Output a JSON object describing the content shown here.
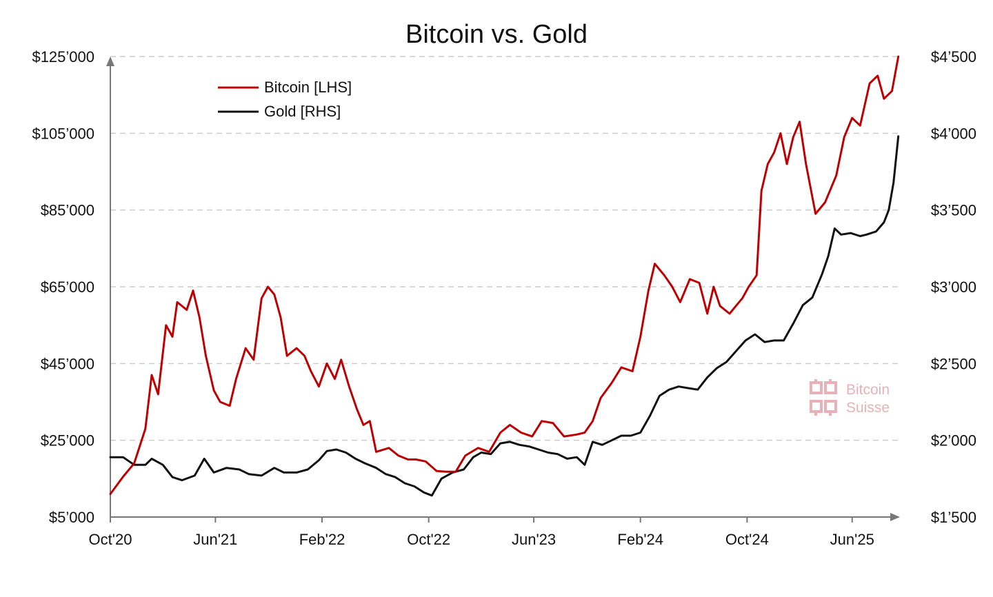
{
  "chart_data": {
    "type": "line",
    "title": "Bitcoin vs. Gold",
    "x_tick_labels": [
      "Oct'20",
      "Jun'21",
      "Feb'22",
      "Oct'22",
      "Jun'23",
      "Feb'24",
      "Oct'24",
      "Jun'25"
    ],
    "x_range": [
      2020.77,
      2025.73
    ],
    "x_tick_positions": [
      2020.77,
      2021.43,
      2022.1,
      2022.77,
      2023.43,
      2024.1,
      2024.77,
      2025.43
    ],
    "y_left": {
      "range": [
        5000,
        125000
      ],
      "ticks": [
        5000,
        25000,
        45000,
        65000,
        85000,
        105000,
        125000
      ],
      "tick_labels": [
        "$5’000",
        "$25’000",
        "$45’000",
        "$65’000",
        "$85’000",
        "$105’000",
        "$125’000"
      ]
    },
    "y_right": {
      "range": [
        1500,
        4500
      ],
      "ticks": [
        1500,
        2000,
        2500,
        3000,
        3500,
        4000,
        4500
      ],
      "tick_labels": [
        "$1’500",
        "$2’000",
        "$2’500",
        "$3’000",
        "$3’500",
        "$4’000",
        "$4’500"
      ]
    },
    "grid": "horizontal dashed",
    "legend": {
      "placement": "top-left"
    },
    "series": [
      {
        "name": "Bitcoin [LHS]",
        "axis": "left",
        "color": "#c00000",
        "points": [
          [
            2020.77,
            11000
          ],
          [
            2020.85,
            15500
          ],
          [
            2020.92,
            19000
          ],
          [
            2020.99,
            28000
          ],
          [
            2021.03,
            42000
          ],
          [
            2021.07,
            37000
          ],
          [
            2021.12,
            55000
          ],
          [
            2021.16,
            52000
          ],
          [
            2021.19,
            61000
          ],
          [
            2021.25,
            59000
          ],
          [
            2021.29,
            64000
          ],
          [
            2021.33,
            57000
          ],
          [
            2021.37,
            47000
          ],
          [
            2021.42,
            38000
          ],
          [
            2021.46,
            35000
          ],
          [
            2021.52,
            34000
          ],
          [
            2021.56,
            41000
          ],
          [
            2021.62,
            49000
          ],
          [
            2021.67,
            46000
          ],
          [
            2021.72,
            62000
          ],
          [
            2021.76,
            65000
          ],
          [
            2021.8,
            63000
          ],
          [
            2021.84,
            57000
          ],
          [
            2021.88,
            47000
          ],
          [
            2021.94,
            49000
          ],
          [
            2021.99,
            47000
          ],
          [
            2022.03,
            43000
          ],
          [
            2022.08,
            39000
          ],
          [
            2022.13,
            45000
          ],
          [
            2022.18,
            41000
          ],
          [
            2022.22,
            46000
          ],
          [
            2022.27,
            39000
          ],
          [
            2022.32,
            33000
          ],
          [
            2022.36,
            29000
          ],
          [
            2022.4,
            30000
          ],
          [
            2022.44,
            22000
          ],
          [
            2022.52,
            23000
          ],
          [
            2022.58,
            21000
          ],
          [
            2022.64,
            20000
          ],
          [
            2022.69,
            20000
          ],
          [
            2022.75,
            19500
          ],
          [
            2022.82,
            17000
          ],
          [
            2022.88,
            16800
          ],
          [
            2022.94,
            16800
          ],
          [
            2023.0,
            21000
          ],
          [
            2023.08,
            23000
          ],
          [
            2023.15,
            22000
          ],
          [
            2023.22,
            27000
          ],
          [
            2023.28,
            29000
          ],
          [
            2023.35,
            27000
          ],
          [
            2023.42,
            26000
          ],
          [
            2023.48,
            30000
          ],
          [
            2023.55,
            29500
          ],
          [
            2023.62,
            26000
          ],
          [
            2023.7,
            26500
          ],
          [
            2023.75,
            27000
          ],
          [
            2023.8,
            30000
          ],
          [
            2023.85,
            36000
          ],
          [
            2023.92,
            40000
          ],
          [
            2023.98,
            44000
          ],
          [
            2024.05,
            43000
          ],
          [
            2024.1,
            52000
          ],
          [
            2024.15,
            64000
          ],
          [
            2024.19,
            71000
          ],
          [
            2024.25,
            68000
          ],
          [
            2024.3,
            65000
          ],
          [
            2024.35,
            61000
          ],
          [
            2024.41,
            67000
          ],
          [
            2024.47,
            66000
          ],
          [
            2024.52,
            58000
          ],
          [
            2024.56,
            65000
          ],
          [
            2024.6,
            60000
          ],
          [
            2024.66,
            58000
          ],
          [
            2024.7,
            60000
          ],
          [
            2024.74,
            62000
          ],
          [
            2024.78,
            65000
          ],
          [
            2024.83,
            68000
          ],
          [
            2024.86,
            90000
          ],
          [
            2024.9,
            97000
          ],
          [
            2024.94,
            100000
          ],
          [
            2024.98,
            105000
          ],
          [
            2025.02,
            97000
          ],
          [
            2025.06,
            104000
          ],
          [
            2025.1,
            108000
          ],
          [
            2025.14,
            97000
          ],
          [
            2025.2,
            84000
          ],
          [
            2025.26,
            87000
          ],
          [
            2025.33,
            94000
          ],
          [
            2025.38,
            104000
          ],
          [
            2025.43,
            109000
          ],
          [
            2025.48,
            107000
          ],
          [
            2025.54,
            118000
          ],
          [
            2025.59,
            120000
          ],
          [
            2025.63,
            114000
          ],
          [
            2025.68,
            116000
          ],
          [
            2025.72,
            125000
          ]
        ]
      },
      {
        "name": "Gold [RHS]",
        "axis": "right",
        "color": "#111111",
        "points": [
          [
            2020.77,
            1890
          ],
          [
            2020.85,
            1890
          ],
          [
            2020.92,
            1840
          ],
          [
            2020.99,
            1840
          ],
          [
            2021.03,
            1880
          ],
          [
            2021.1,
            1840
          ],
          [
            2021.16,
            1760
          ],
          [
            2021.22,
            1740
          ],
          [
            2021.3,
            1770
          ],
          [
            2021.36,
            1880
          ],
          [
            2021.42,
            1790
          ],
          [
            2021.5,
            1820
          ],
          [
            2021.58,
            1810
          ],
          [
            2021.64,
            1780
          ],
          [
            2021.72,
            1770
          ],
          [
            2021.8,
            1820
          ],
          [
            2021.86,
            1790
          ],
          [
            2021.94,
            1790
          ],
          [
            2022.01,
            1810
          ],
          [
            2022.08,
            1870
          ],
          [
            2022.13,
            1930
          ],
          [
            2022.19,
            1940
          ],
          [
            2022.25,
            1920
          ],
          [
            2022.31,
            1880
          ],
          [
            2022.37,
            1850
          ],
          [
            2022.44,
            1820
          ],
          [
            2022.5,
            1780
          ],
          [
            2022.56,
            1760
          ],
          [
            2022.62,
            1720
          ],
          [
            2022.68,
            1700
          ],
          [
            2022.74,
            1660
          ],
          [
            2022.79,
            1640
          ],
          [
            2022.85,
            1750
          ],
          [
            2022.92,
            1790
          ],
          [
            2022.99,
            1810
          ],
          [
            2023.05,
            1890
          ],
          [
            2023.1,
            1920
          ],
          [
            2023.16,
            1910
          ],
          [
            2023.22,
            1980
          ],
          [
            2023.28,
            1990
          ],
          [
            2023.34,
            1970
          ],
          [
            2023.4,
            1960
          ],
          [
            2023.46,
            1940
          ],
          [
            2023.52,
            1920
          ],
          [
            2023.58,
            1910
          ],
          [
            2023.64,
            1880
          ],
          [
            2023.7,
            1890
          ],
          [
            2023.75,
            1840
          ],
          [
            2023.8,
            1990
          ],
          [
            2023.86,
            1970
          ],
          [
            2023.92,
            2000
          ],
          [
            2023.98,
            2030
          ],
          [
            2024.04,
            2030
          ],
          [
            2024.1,
            2050
          ],
          [
            2024.16,
            2160
          ],
          [
            2024.22,
            2290
          ],
          [
            2024.28,
            2330
          ],
          [
            2024.34,
            2350
          ],
          [
            2024.4,
            2340
          ],
          [
            2024.46,
            2330
          ],
          [
            2024.52,
            2410
          ],
          [
            2024.58,
            2470
          ],
          [
            2024.64,
            2510
          ],
          [
            2024.7,
            2580
          ],
          [
            2024.76,
            2650
          ],
          [
            2024.82,
            2690
          ],
          [
            2024.88,
            2640
          ],
          [
            2024.94,
            2650
          ],
          [
            2025.0,
            2650
          ],
          [
            2025.06,
            2760
          ],
          [
            2025.12,
            2880
          ],
          [
            2025.18,
            2930
          ],
          [
            2025.24,
            3080
          ],
          [
            2025.28,
            3200
          ],
          [
            2025.32,
            3380
          ],
          [
            2025.36,
            3340
          ],
          [
            2025.42,
            3350
          ],
          [
            2025.48,
            3330
          ],
          [
            2025.52,
            3340
          ],
          [
            2025.58,
            3360
          ],
          [
            2025.63,
            3420
          ],
          [
            2025.66,
            3500
          ],
          [
            2025.69,
            3680
          ],
          [
            2025.72,
            3980
          ]
        ]
      }
    ]
  },
  "watermark": {
    "line1": "Bitcoin",
    "line2": "Suisse"
  }
}
